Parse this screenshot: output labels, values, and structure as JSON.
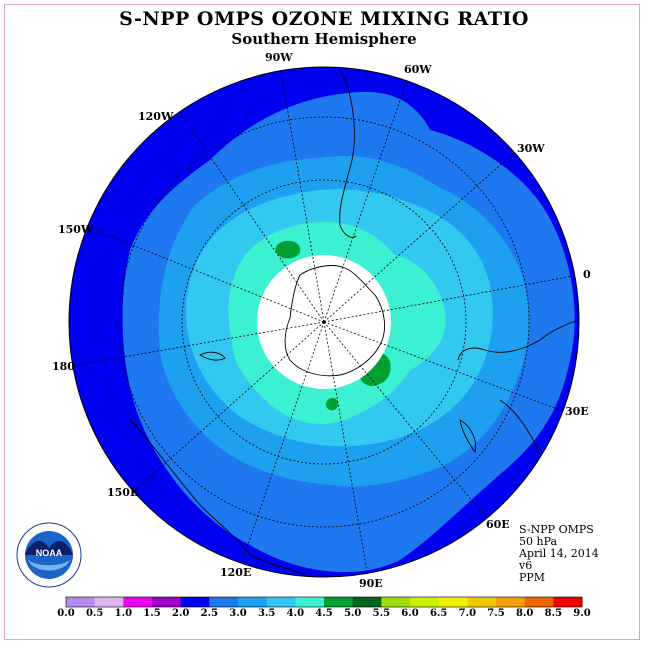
{
  "title": "S-NPP OMPS OZONE MIXING RATIO",
  "subtitle": "Southern Hemisphere",
  "longitude_labels": [
    {
      "text": "90W"
    },
    {
      "text": "60W"
    },
    {
      "text": "120W"
    },
    {
      "text": "30W"
    },
    {
      "text": "150W"
    },
    {
      "text": "0"
    },
    {
      "text": "180"
    },
    {
      "text": "30E"
    },
    {
      "text": "150E"
    },
    {
      "text": "60E"
    },
    {
      "text": "120E"
    },
    {
      "text": "90E"
    }
  ],
  "info": {
    "instrument": "S-NPP OMPS",
    "level": "50 hPa",
    "date": "April 14, 2014",
    "version": "v6",
    "units": "PPM"
  },
  "logo": {
    "text": "NOAA",
    "ring_text": "NATIONAL OCEANIC AND ATMOSPHERIC ADMINISTRATION · U.S. DEPARTMENT OF COMMERCE"
  },
  "colorbar": {
    "ticks": [
      "0.0",
      "0.5",
      "1.0",
      "1.5",
      "2.0",
      "2.5",
      "3.0",
      "3.5",
      "4.0",
      "4.5",
      "5.0",
      "5.5",
      "6.0",
      "6.5",
      "7.0",
      "7.5",
      "8.0",
      "8.5",
      "9.0"
    ],
    "colors": [
      "#b48cf0",
      "#dcb4f0",
      "#f000f0",
      "#a000c8",
      "#0000f0",
      "#1e78f0",
      "#1ea0f0",
      "#32c8f0",
      "#3cf0d2",
      "#00a032",
      "#00641e",
      "#a0dc00",
      "#c8f000",
      "#f0f000",
      "#f0c800",
      "#f0a000",
      "#f06400",
      "#f00000",
      "#8c5a3c"
    ]
  },
  "map_colors": {
    "band_2_0": "#0000f0",
    "band_2_5": "#1e78f0",
    "band_3_0": "#1ea0f0",
    "band_3_5": "#32c8f0",
    "band_4_0": "#3cf0d2",
    "band_4_5": "#00a032",
    "no_data": "#ffffff"
  },
  "chart_data": {
    "type": "heatmap",
    "title": "S-NPP OMPS OZONE MIXING RATIO",
    "subtitle": "Southern Hemisphere",
    "units": "PPM",
    "projection": "south polar stereographic",
    "levels": [
      0.0,
      0.5,
      1.0,
      1.5,
      2.0,
      2.5,
      3.0,
      3.5,
      4.0,
      4.5,
      5.0,
      5.5,
      6.0,
      6.5,
      7.0,
      7.5,
      8.0,
      8.5,
      9.0
    ],
    "observed_range": [
      2.0,
      5.0
    ]
  }
}
